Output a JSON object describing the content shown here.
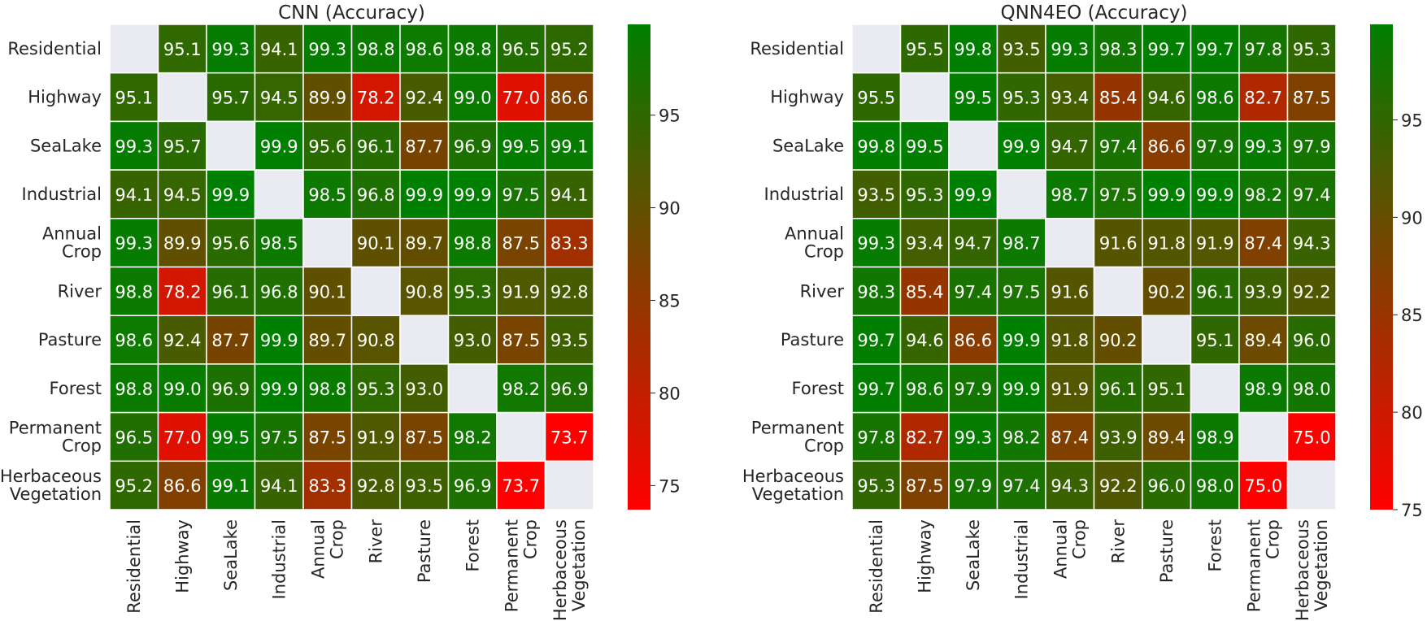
{
  "chart_data": [
    {
      "type": "heatmap",
      "title": "CNN (Accuracy)",
      "categories": [
        [
          "Residential"
        ],
        [
          "Highway"
        ],
        [
          "SeaLake"
        ],
        [
          "Industrial"
        ],
        [
          "Annual",
          "Crop"
        ],
        [
          "River"
        ],
        [
          "Pasture"
        ],
        [
          "Forest"
        ],
        [
          "Permanent",
          "Crop"
        ],
        [
          "Herbaceous",
          "Vegetation"
        ]
      ],
      "values": [
        [
          null,
          95.1,
          99.3,
          94.1,
          99.3,
          98.8,
          98.6,
          98.8,
          96.5,
          95.2
        ],
        [
          95.1,
          null,
          95.7,
          94.5,
          89.9,
          78.2,
          92.4,
          99.0,
          77.0,
          86.6
        ],
        [
          99.3,
          95.7,
          null,
          99.9,
          95.6,
          96.1,
          87.7,
          96.9,
          99.5,
          99.1
        ],
        [
          94.1,
          94.5,
          99.9,
          null,
          98.5,
          96.8,
          99.9,
          99.9,
          97.5,
          94.1
        ],
        [
          99.3,
          89.9,
          95.6,
          98.5,
          null,
          90.1,
          89.7,
          98.8,
          87.5,
          83.3
        ],
        [
          98.8,
          78.2,
          96.1,
          96.8,
          90.1,
          null,
          90.8,
          95.3,
          91.9,
          92.8
        ],
        [
          98.6,
          92.4,
          87.7,
          99.9,
          89.7,
          90.8,
          null,
          93.0,
          87.5,
          93.5
        ],
        [
          98.8,
          99.0,
          96.9,
          99.9,
          98.8,
          95.3,
          93.0,
          null,
          98.2,
          96.9
        ],
        [
          96.5,
          77.0,
          99.5,
          97.5,
          87.5,
          91.9,
          87.5,
          98.2,
          null,
          73.7
        ],
        [
          95.2,
          86.6,
          99.1,
          94.1,
          83.3,
          92.8,
          93.5,
          96.9,
          73.7,
          null
        ]
      ],
      "colorbar": {
        "range": [
          73.7,
          99.9
        ],
        "ticks": [
          75,
          80,
          85,
          90,
          95
        ]
      },
      "colors": {
        "low": "#ff0000",
        "high": "#008000",
        "empty": "#eaeaf2"
      }
    },
    {
      "type": "heatmap",
      "title": "QNN4EO (Accuracy)",
      "categories": [
        [
          "Residential"
        ],
        [
          "Highway"
        ],
        [
          "SeaLake"
        ],
        [
          "Industrial"
        ],
        [
          "Annual",
          "Crop"
        ],
        [
          "River"
        ],
        [
          "Pasture"
        ],
        [
          "Forest"
        ],
        [
          "Permanent",
          "Crop"
        ],
        [
          "Herbaceous",
          "Vegetation"
        ]
      ],
      "values": [
        [
          null,
          95.5,
          99.8,
          93.5,
          99.3,
          98.3,
          99.7,
          99.7,
          97.8,
          95.3
        ],
        [
          95.5,
          null,
          99.5,
          95.3,
          93.4,
          85.4,
          94.6,
          98.6,
          82.7,
          87.5
        ],
        [
          99.8,
          99.5,
          null,
          99.9,
          94.7,
          97.4,
          86.6,
          97.9,
          99.3,
          97.9
        ],
        [
          93.5,
          95.3,
          99.9,
          null,
          98.7,
          97.5,
          99.9,
          99.9,
          98.2,
          97.4
        ],
        [
          99.3,
          93.4,
          94.7,
          98.7,
          null,
          91.6,
          91.8,
          91.9,
          87.4,
          94.3
        ],
        [
          98.3,
          85.4,
          97.4,
          97.5,
          91.6,
          null,
          90.2,
          96.1,
          93.9,
          92.2
        ],
        [
          99.7,
          94.6,
          86.6,
          99.9,
          91.8,
          90.2,
          null,
          95.1,
          89.4,
          96.0
        ],
        [
          99.7,
          98.6,
          97.9,
          99.9,
          91.9,
          96.1,
          95.1,
          null,
          98.9,
          98.0
        ],
        [
          97.8,
          82.7,
          99.3,
          98.2,
          87.4,
          93.9,
          89.4,
          98.9,
          null,
          75.0
        ],
        [
          95.3,
          87.5,
          97.9,
          97.4,
          94.3,
          92.2,
          96.0,
          98.0,
          75.0,
          null
        ]
      ],
      "colorbar": {
        "range": [
          75.0,
          99.9
        ],
        "ticks": [
          75,
          80,
          85,
          90,
          95
        ]
      },
      "colors": {
        "low": "#ff0000",
        "high": "#008000",
        "empty": "#eaeaf2"
      }
    }
  ]
}
